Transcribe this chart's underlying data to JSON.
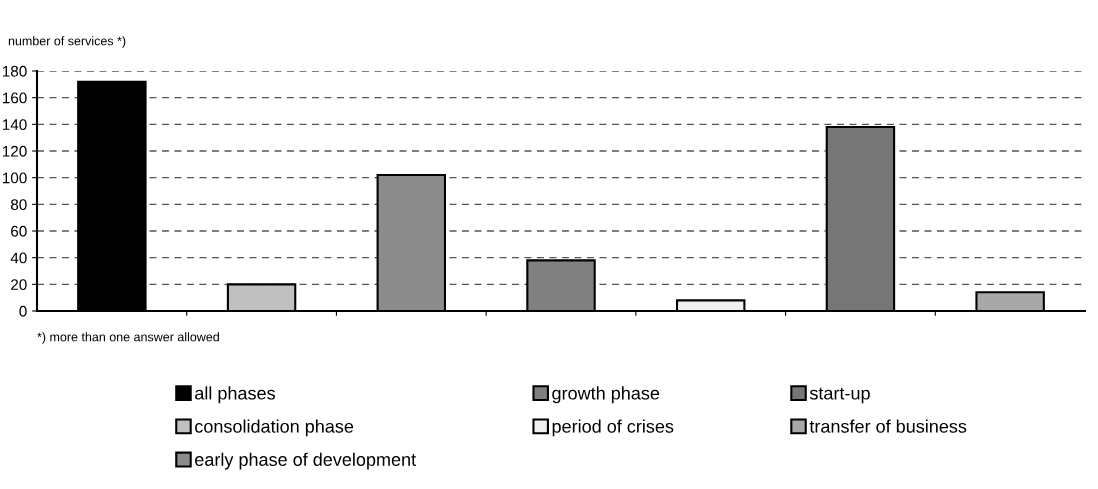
{
  "chart_data": {
    "type": "bar",
    "ylabel": "number of services *)",
    "categories": [
      null,
      null,
      null,
      null,
      null,
      null,
      null
    ],
    "series": [
      {
        "name": "all phases",
        "color": "#000000",
        "values": [
          172,
          null,
          null,
          null,
          null,
          null,
          null
        ]
      },
      {
        "name": "consolidation phase",
        "color": "#c0c0c0",
        "values": [
          null,
          20,
          null,
          null,
          null,
          null,
          null
        ]
      },
      {
        "name": "early phase of development",
        "color": "#8c8c8c",
        "values": [
          null,
          null,
          102,
          null,
          null,
          null,
          null
        ]
      },
      {
        "name": "growth phase",
        "color": "#808080",
        "values": [
          null,
          null,
          null,
          38,
          null,
          null,
          null
        ]
      },
      {
        "name": "period of crises",
        "color": "#f0f0f0",
        "values": [
          null,
          null,
          null,
          null,
          8,
          null,
          null
        ]
      },
      {
        "name": "start-up",
        "color": "#767676",
        "values": [
          null,
          null,
          null,
          null,
          null,
          138,
          null
        ]
      },
      {
        "name": "transfer of business",
        "color": "#a8a8a8",
        "values": [
          null,
          null,
          null,
          null,
          null,
          null,
          14
        ]
      }
    ],
    "ylim": [
      0,
      180
    ],
    "yticks": [
      0,
      20,
      40,
      60,
      80,
      100,
      120,
      140,
      160,
      180
    ],
    "grid": "y",
    "legend": "bottom",
    "annotations": [
      "*) more than one answer allowed"
    ]
  }
}
